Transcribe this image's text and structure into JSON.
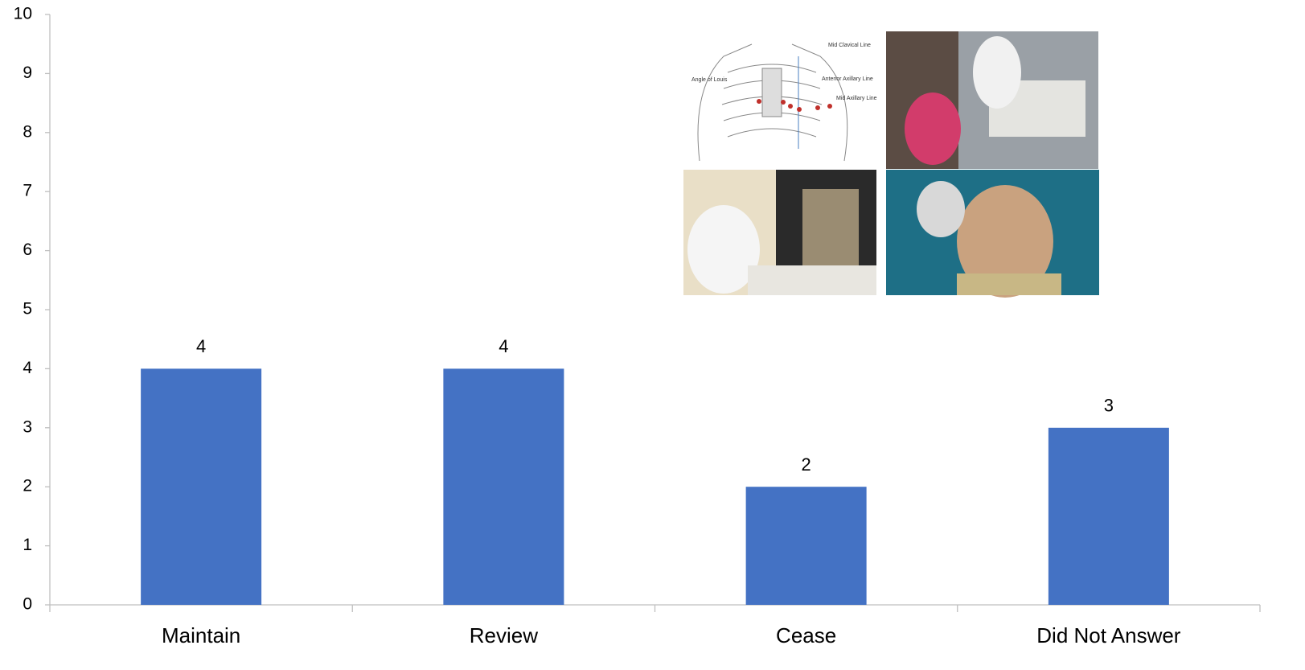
{
  "chart_data": {
    "type": "bar",
    "categories": [
      "Maintain",
      "Review",
      "Cease",
      "Did Not Answer"
    ],
    "values": [
      4,
      4,
      2,
      3
    ],
    "color": "#4472c4",
    "ylim": [
      0,
      10
    ],
    "yticks": [
      0,
      1,
      2,
      3,
      4,
      5,
      6,
      7,
      8,
      9,
      10
    ],
    "grid": false,
    "annotations": [
      "Mid Clavical Line",
      "Angle of Louis",
      "Anterior Axillary Line",
      "Mid Axillary Line"
    ]
  }
}
